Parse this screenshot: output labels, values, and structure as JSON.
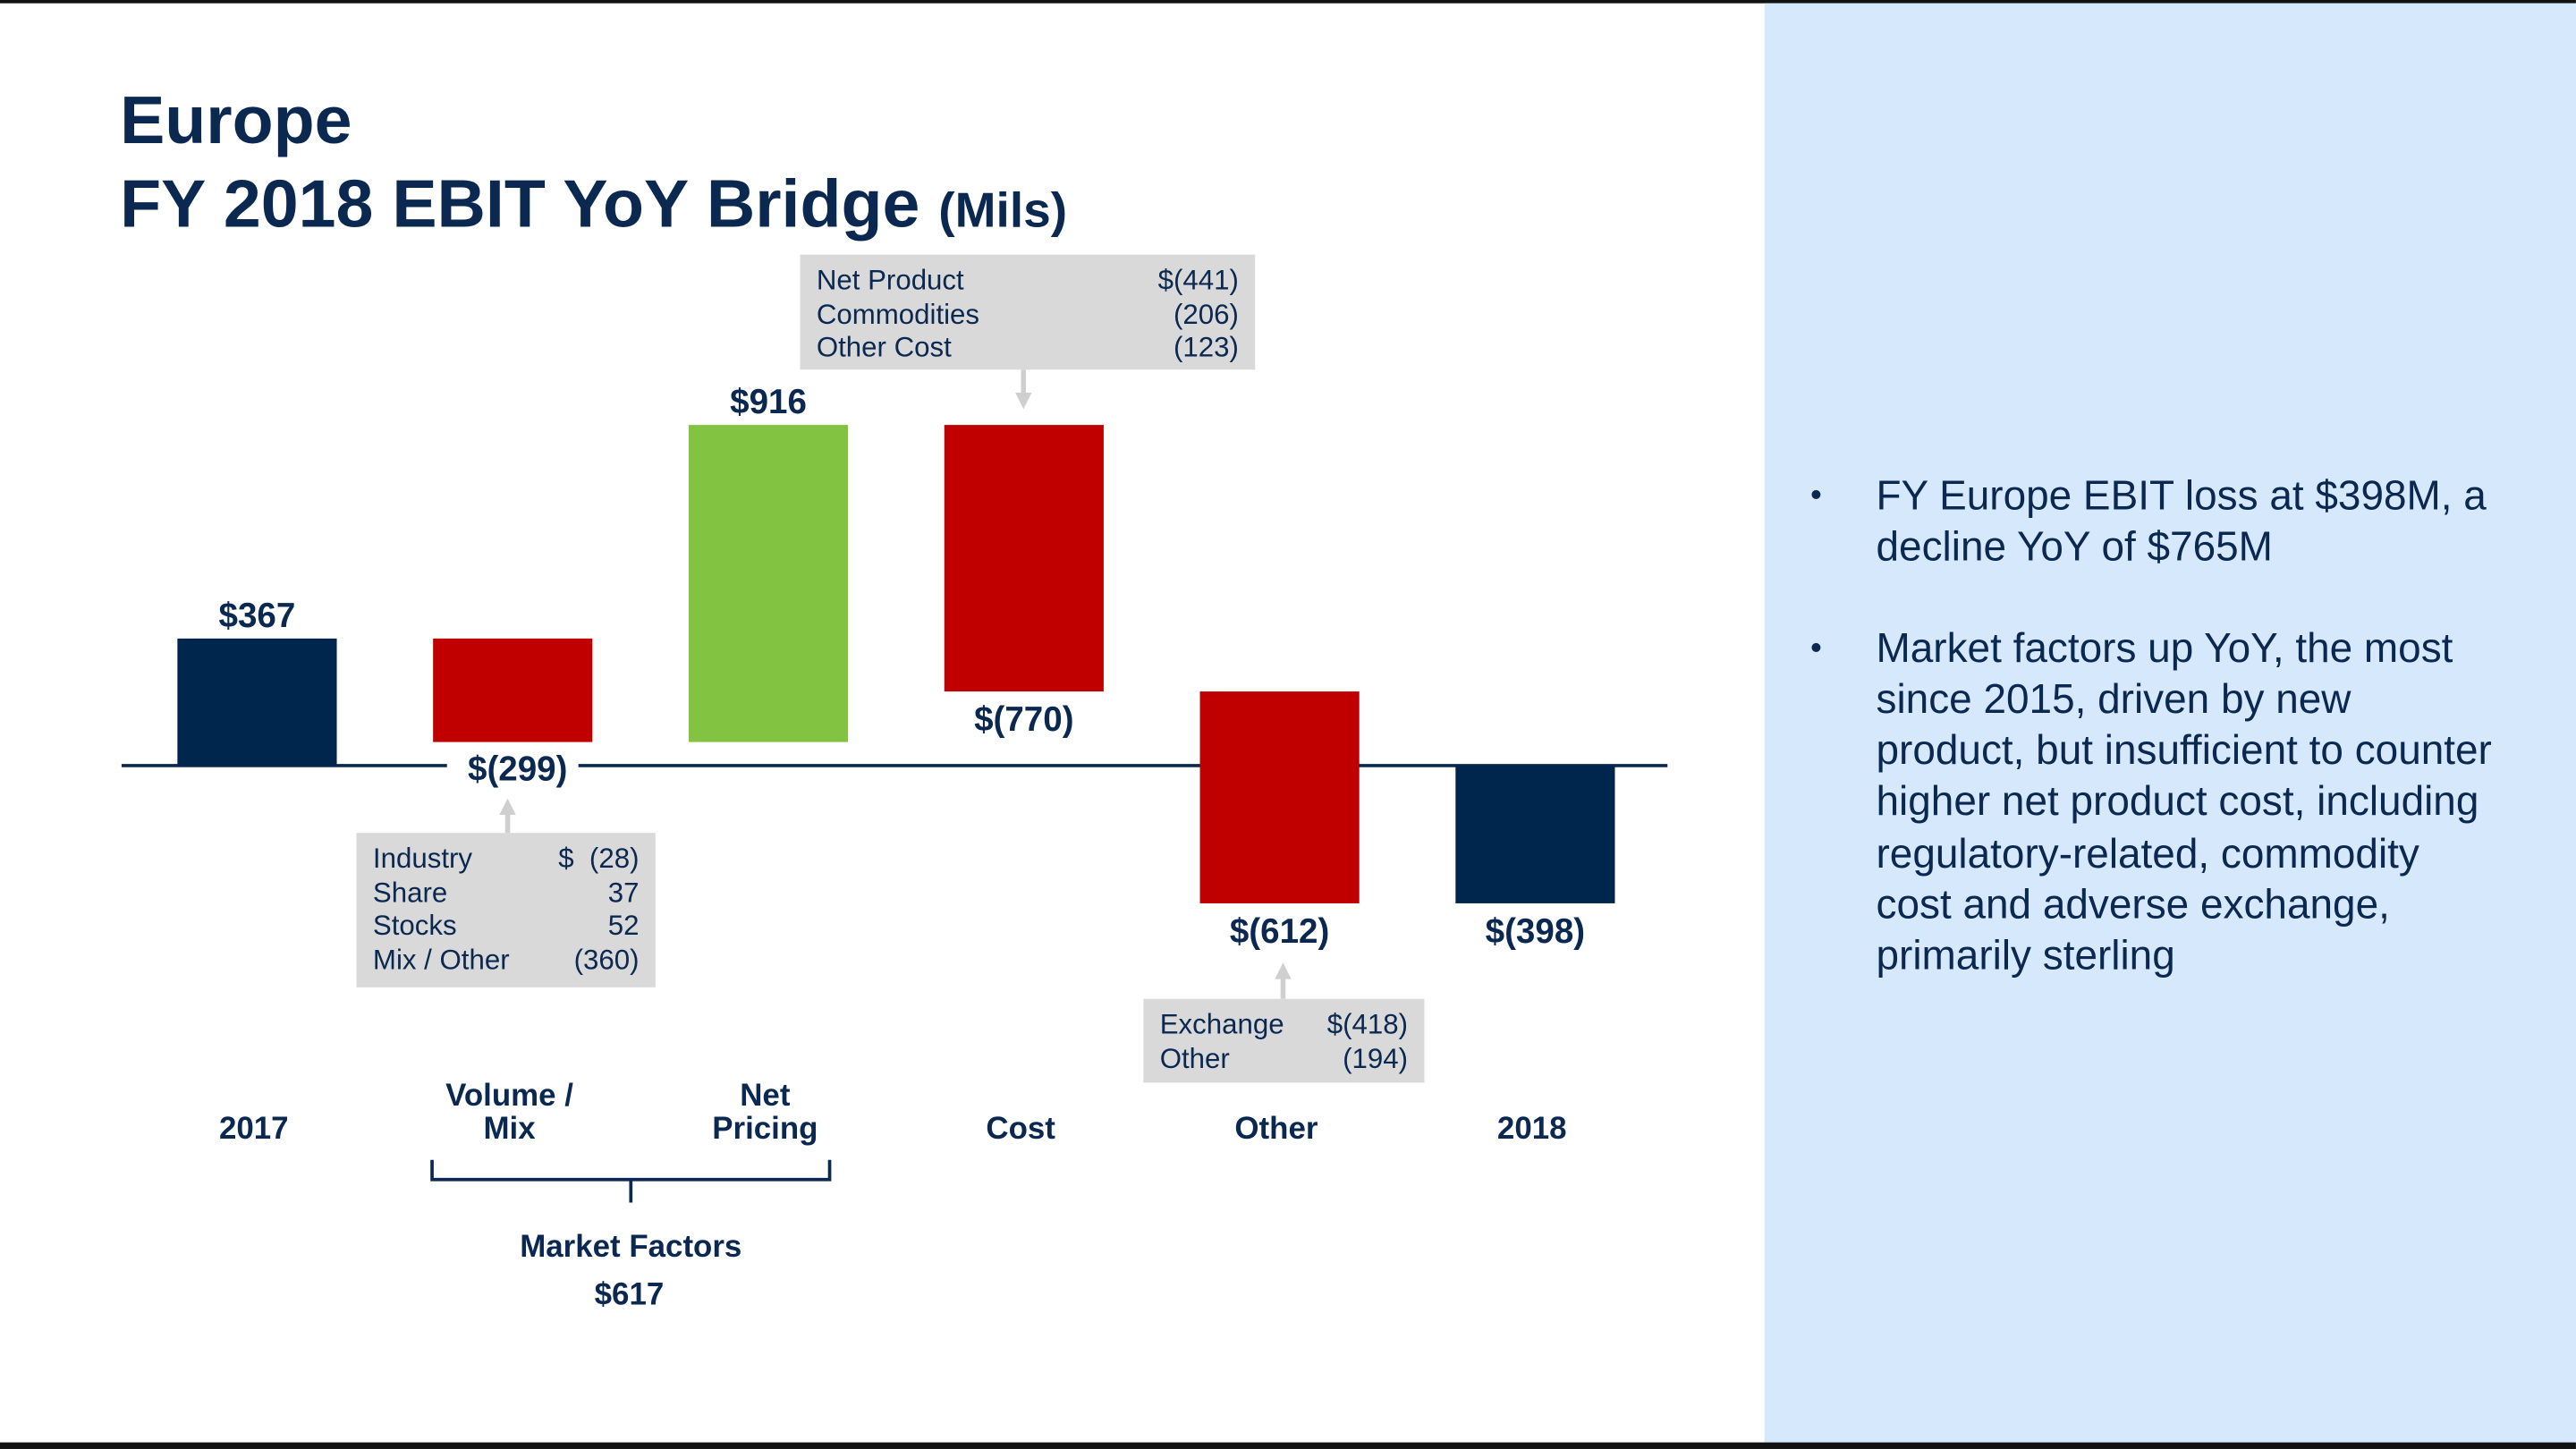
{
  "title": {
    "line1": "Europe",
    "line2": "FY 2018 EBIT YoY Bridge",
    "unit": "(Mils)"
  },
  "chart_data": {
    "type": "waterfall",
    "categories": [
      "2017",
      "Volume / Mix",
      "Net Pricing",
      "Cost",
      "Other",
      "2018"
    ],
    "values": [
      367,
      -299,
      916,
      -770,
      -612,
      -398
    ],
    "kinds": [
      "total",
      "delta",
      "delta",
      "delta",
      "delta",
      "total"
    ],
    "data_labels": [
      "$367",
      "$(299)",
      "$916",
      "$(770)",
      "$(612)",
      "$(398)"
    ],
    "colors": {
      "total": "#00264d",
      "increase": "#82c341",
      "decrease": "#c00000"
    },
    "category_lines": [
      [
        "2017"
      ],
      [
        "Volume /",
        "Mix"
      ],
      [
        "Net",
        "Pricing"
      ],
      [
        "Cost"
      ],
      [
        "Other"
      ],
      [
        "2018"
      ]
    ],
    "group": {
      "label": "Market Factors",
      "value": "$617",
      "spans": [
        "Volume / Mix",
        "Net Pricing"
      ]
    }
  },
  "callouts": {
    "cost": [
      [
        "Net Product",
        "$(441)"
      ],
      [
        "Commodities",
        "(206)"
      ],
      [
        "Other Cost",
        "(123)"
      ]
    ],
    "volume_mix": [
      [
        "Industry",
        "$  (28)"
      ],
      [
        "Share",
        "37"
      ],
      [
        "Stocks",
        "52"
      ],
      [
        "Mix / Other",
        "(360)"
      ]
    ],
    "other": [
      [
        "Exchange",
        "$(418)"
      ],
      [
        "Other",
        "(194)"
      ]
    ]
  },
  "bullets": [
    "FY Europe EBIT loss at $398M, a decline YoY of $765M",
    "Market factors up YoY, the most since 2015, driven by new product, but insufficient to counter higher net product cost, including regulatory-related, commodity cost and adverse exchange, primarily sterling"
  ],
  "bullet_symbol": "•"
}
